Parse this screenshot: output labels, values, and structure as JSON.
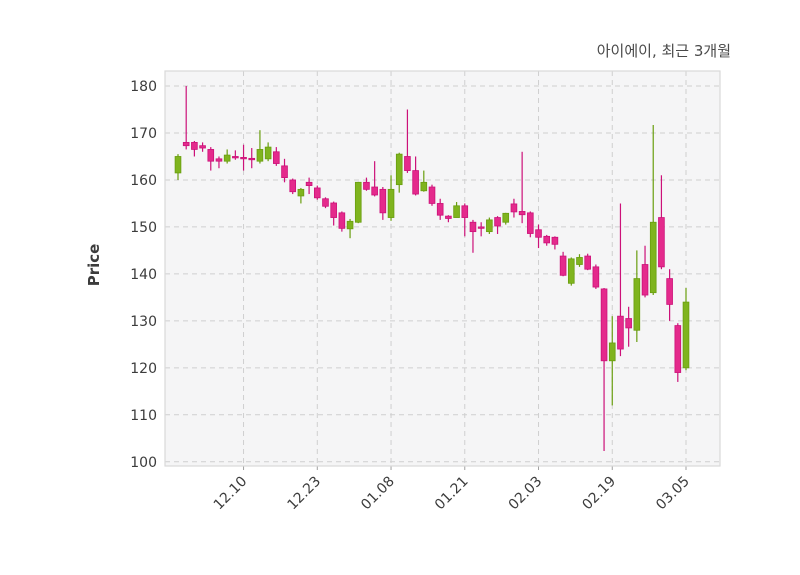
{
  "chart_data": {
    "type": "candlestick",
    "title": "아이에이, 최근 3개월",
    "ylabel": "Price",
    "xlabel": "",
    "legend": "none",
    "grid": "dashed both axes",
    "ylim": [
      99.1,
      183.2
    ],
    "yticks": [
      100,
      110,
      120,
      130,
      140,
      150,
      160,
      170,
      180
    ],
    "xticks": [
      {
        "label": "12.10",
        "index": 8
      },
      {
        "label": "12.23",
        "index": 17
      },
      {
        "label": "01.08",
        "index": 26
      },
      {
        "label": "01.21",
        "index": 35
      },
      {
        "label": "02.03",
        "index": 44
      },
      {
        "label": "02.19",
        "index": 53
      },
      {
        "label": "03.05",
        "index": 62
      }
    ],
    "colors": {
      "up": "#7fb41e",
      "up_edge": "#699e0e",
      "down": "#e42a8c",
      "down_edge": "#cc1179",
      "plot_bg": "#f5f5f6",
      "grid": "#cfcfcf",
      "spine": "#d9d9d9",
      "tick_mark": "#a0a0a0",
      "tick_text": "#3c3c3c",
      "title_text": "#4a4a4a"
    },
    "ohlc_note": "each candle is [open, high, low, close]",
    "candles": [
      [
        161.5,
        165.5,
        160.0,
        165.0
      ],
      [
        168.0,
        180.0,
        166.5,
        167.3
      ],
      [
        168.0,
        168.3,
        165.0,
        166.5
      ],
      [
        167.3,
        168.0,
        166.0,
        166.8
      ],
      [
        166.5,
        167.0,
        162.0,
        164.0
      ],
      [
        164.5,
        165.0,
        162.5,
        164.0
      ],
      [
        164.0,
        166.5,
        163.5,
        165.3
      ],
      [
        165.0,
        166.3,
        164.3,
        164.8
      ],
      [
        164.8,
        167.5,
        162.0,
        164.5
      ],
      [
        164.6,
        166.8,
        162.5,
        164.4
      ],
      [
        164.0,
        170.6,
        163.5,
        166.5
      ],
      [
        164.5,
        168.0,
        164.0,
        167.0
      ],
      [
        166.0,
        167.0,
        163.0,
        163.5
      ],
      [
        163.0,
        164.5,
        159.5,
        160.5
      ],
      [
        160.0,
        160.3,
        157.0,
        157.5
      ],
      [
        156.6,
        158.3,
        155.0,
        158.0
      ],
      [
        159.5,
        160.5,
        157.0,
        158.8
      ],
      [
        158.3,
        158.8,
        155.8,
        156.2
      ],
      [
        156.0,
        156.3,
        154.0,
        154.4
      ],
      [
        155.1,
        155.4,
        150.3,
        152.0
      ],
      [
        153.0,
        153.3,
        149.0,
        149.7
      ],
      [
        149.6,
        151.7,
        147.6,
        151.2
      ],
      [
        151.0,
        159.6,
        150.8,
        159.5
      ],
      [
        159.5,
        160.5,
        157.7,
        158.0
      ],
      [
        158.5,
        164.0,
        156.5,
        156.8
      ],
      [
        158.0,
        158.5,
        151.5,
        153.0
      ],
      [
        152.0,
        161.0,
        151.3,
        158.0
      ],
      [
        159.0,
        165.8,
        157.3,
        165.5
      ],
      [
        165.0,
        175.0,
        161.5,
        162.0
      ],
      [
        162.0,
        165.0,
        156.7,
        157.0
      ],
      [
        157.7,
        162.0,
        157.5,
        159.5
      ],
      [
        158.5,
        159.0,
        154.5,
        155.0
      ],
      [
        155.0,
        156.0,
        151.5,
        152.5
      ],
      [
        152.3,
        152.5,
        151.0,
        151.8
      ],
      [
        152.0,
        155.3,
        152.0,
        154.5
      ],
      [
        154.5,
        155.0,
        148.0,
        152.0
      ],
      [
        151.0,
        151.5,
        144.5,
        149.0
      ],
      [
        150.0,
        151.0,
        148.0,
        149.8
      ],
      [
        149.0,
        152.0,
        148.5,
        151.5
      ],
      [
        152.0,
        152.3,
        148.5,
        150.2
      ],
      [
        151.0,
        153.0,
        150.5,
        152.9
      ],
      [
        154.9,
        156.0,
        152.0,
        153.2
      ],
      [
        153.3,
        166.0,
        150.8,
        152.6
      ],
      [
        153.0,
        153.3,
        147.8,
        148.6
      ],
      [
        149.4,
        150.5,
        145.5,
        147.8
      ],
      [
        148.0,
        148.3,
        146.0,
        146.6
      ],
      [
        147.8,
        148.0,
        145.2,
        146.3
      ],
      [
        143.8,
        144.7,
        139.5,
        139.7
      ],
      [
        138.0,
        143.5,
        137.5,
        143.2
      ],
      [
        142.0,
        144.2,
        141.5,
        143.5
      ],
      [
        143.8,
        144.3,
        140.8,
        141.0
      ],
      [
        141.5,
        142.0,
        136.8,
        137.2
      ],
      [
        136.8,
        137.0,
        102.3,
        121.5
      ],
      [
        121.5,
        131.0,
        112.0,
        125.3
      ],
      [
        131.0,
        155.0,
        122.5,
        124.0
      ],
      [
        130.5,
        133.0,
        124.5,
        128.5
      ],
      [
        128.0,
        145.0,
        125.5,
        139.0
      ],
      [
        142.0,
        146.0,
        135.0,
        135.5
      ],
      [
        136.0,
        171.7,
        135.5,
        151.0
      ],
      [
        152.0,
        161.0,
        141.0,
        141.5
      ],
      [
        139.0,
        141.0,
        130.0,
        133.5
      ],
      [
        129.0,
        129.5,
        117.0,
        119.0
      ],
      [
        120.0,
        137.0,
        119.5,
        134.0
      ]
    ]
  }
}
